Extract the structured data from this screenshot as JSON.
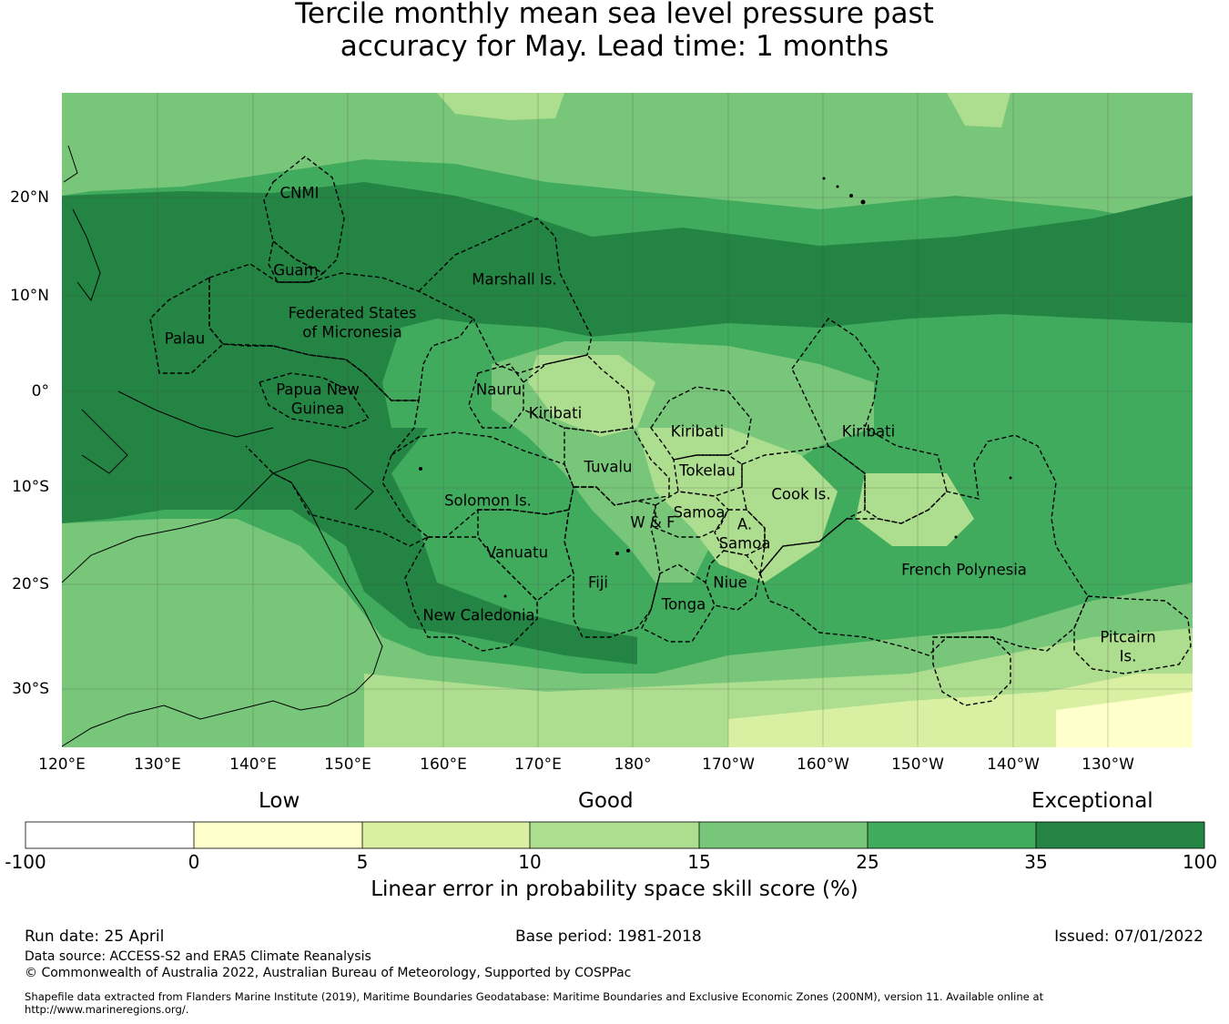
{
  "title": {
    "line1": "Tercile monthly mean sea level pressure past",
    "line2": "accuracy for May. Lead time: 1 months"
  },
  "map": {
    "lat_labels": [
      "20°N",
      "10°N",
      "0°",
      "10°S",
      "20°S",
      "30°S"
    ],
    "lon_labels": [
      "120°E",
      "130°E",
      "140°E",
      "150°E",
      "160°E",
      "170°E",
      "180°",
      "170°W",
      "160°W",
      "150°W",
      "140°W",
      "130°W"
    ],
    "regions": [
      {
        "name": "cnmi",
        "label": "CNMI"
      },
      {
        "name": "guam",
        "label": "Guam"
      },
      {
        "name": "marshall",
        "label": "Marshall Is."
      },
      {
        "name": "fsm-1",
        "label": "Federated States"
      },
      {
        "name": "fsm-2",
        "label": "of Micronesia"
      },
      {
        "name": "palau",
        "label": "Palau"
      },
      {
        "name": "png-1",
        "label": "Papua New"
      },
      {
        "name": "png-2",
        "label": "Guinea"
      },
      {
        "name": "nauru",
        "label": "Nauru"
      },
      {
        "name": "kiribati-west",
        "label": "Kiribati"
      },
      {
        "name": "kiribati-central",
        "label": "Kiribati"
      },
      {
        "name": "kiribati-east",
        "label": "Kiribati"
      },
      {
        "name": "tuvalu",
        "label": "Tuvalu"
      },
      {
        "name": "tokelau",
        "label": "Tokelau"
      },
      {
        "name": "solomon",
        "label": "Solomon Is."
      },
      {
        "name": "cook",
        "label": "Cook Is."
      },
      {
        "name": "samoa",
        "label": "Samoa"
      },
      {
        "name": "wallis-futuna",
        "label": "W & F"
      },
      {
        "name": "am-samoa-1",
        "label": "A."
      },
      {
        "name": "am-samoa-2",
        "label": "Samoa"
      },
      {
        "name": "vanuatu",
        "label": "Vanuatu"
      },
      {
        "name": "fiji",
        "label": "Fiji"
      },
      {
        "name": "niue",
        "label": "Niue"
      },
      {
        "name": "tonga",
        "label": "Tonga"
      },
      {
        "name": "new-caledonia",
        "label": "New Caledonia"
      },
      {
        "name": "french-polynesia",
        "label": "French Polynesia"
      },
      {
        "name": "pitcairn-1",
        "label": "Pitcairn"
      },
      {
        "name": "pitcairn-2",
        "label": "Is."
      }
    ]
  },
  "colorbar": {
    "category_labels": {
      "low": "Low",
      "good": "Good",
      "exceptional": "Exceptional"
    },
    "ticks": [
      "-100",
      "0",
      "5",
      "10",
      "15",
      "25",
      "35",
      "100"
    ],
    "colors": [
      "#ffffff",
      "#ffffcc",
      "#d9f0a3",
      "#addd8e",
      "#78c679",
      "#41ab5d",
      "#238443"
    ],
    "title": "Linear error in probability space skill score (%)"
  },
  "footer": {
    "run_date": "Run date: 25 April",
    "base_period": "Base period: 1981-2018",
    "issued": "Issued: 07/01/2022",
    "data_source": "Data source: ACCESS-S2 and ERA5 Climate Reanalysis",
    "copyright": "© Commonwealth of Australia 2022, Australian Bureau of Meteorology, Supported by COSPPac",
    "shapefile": "Shapefile data extracted from Flanders Marine Institute (2019), Maritime Boundaries Geodatabase: Maritime Boundaries and Exclusive Economic Zones (200NM), version 11. Available online at http://www.marineregions.org/."
  }
}
